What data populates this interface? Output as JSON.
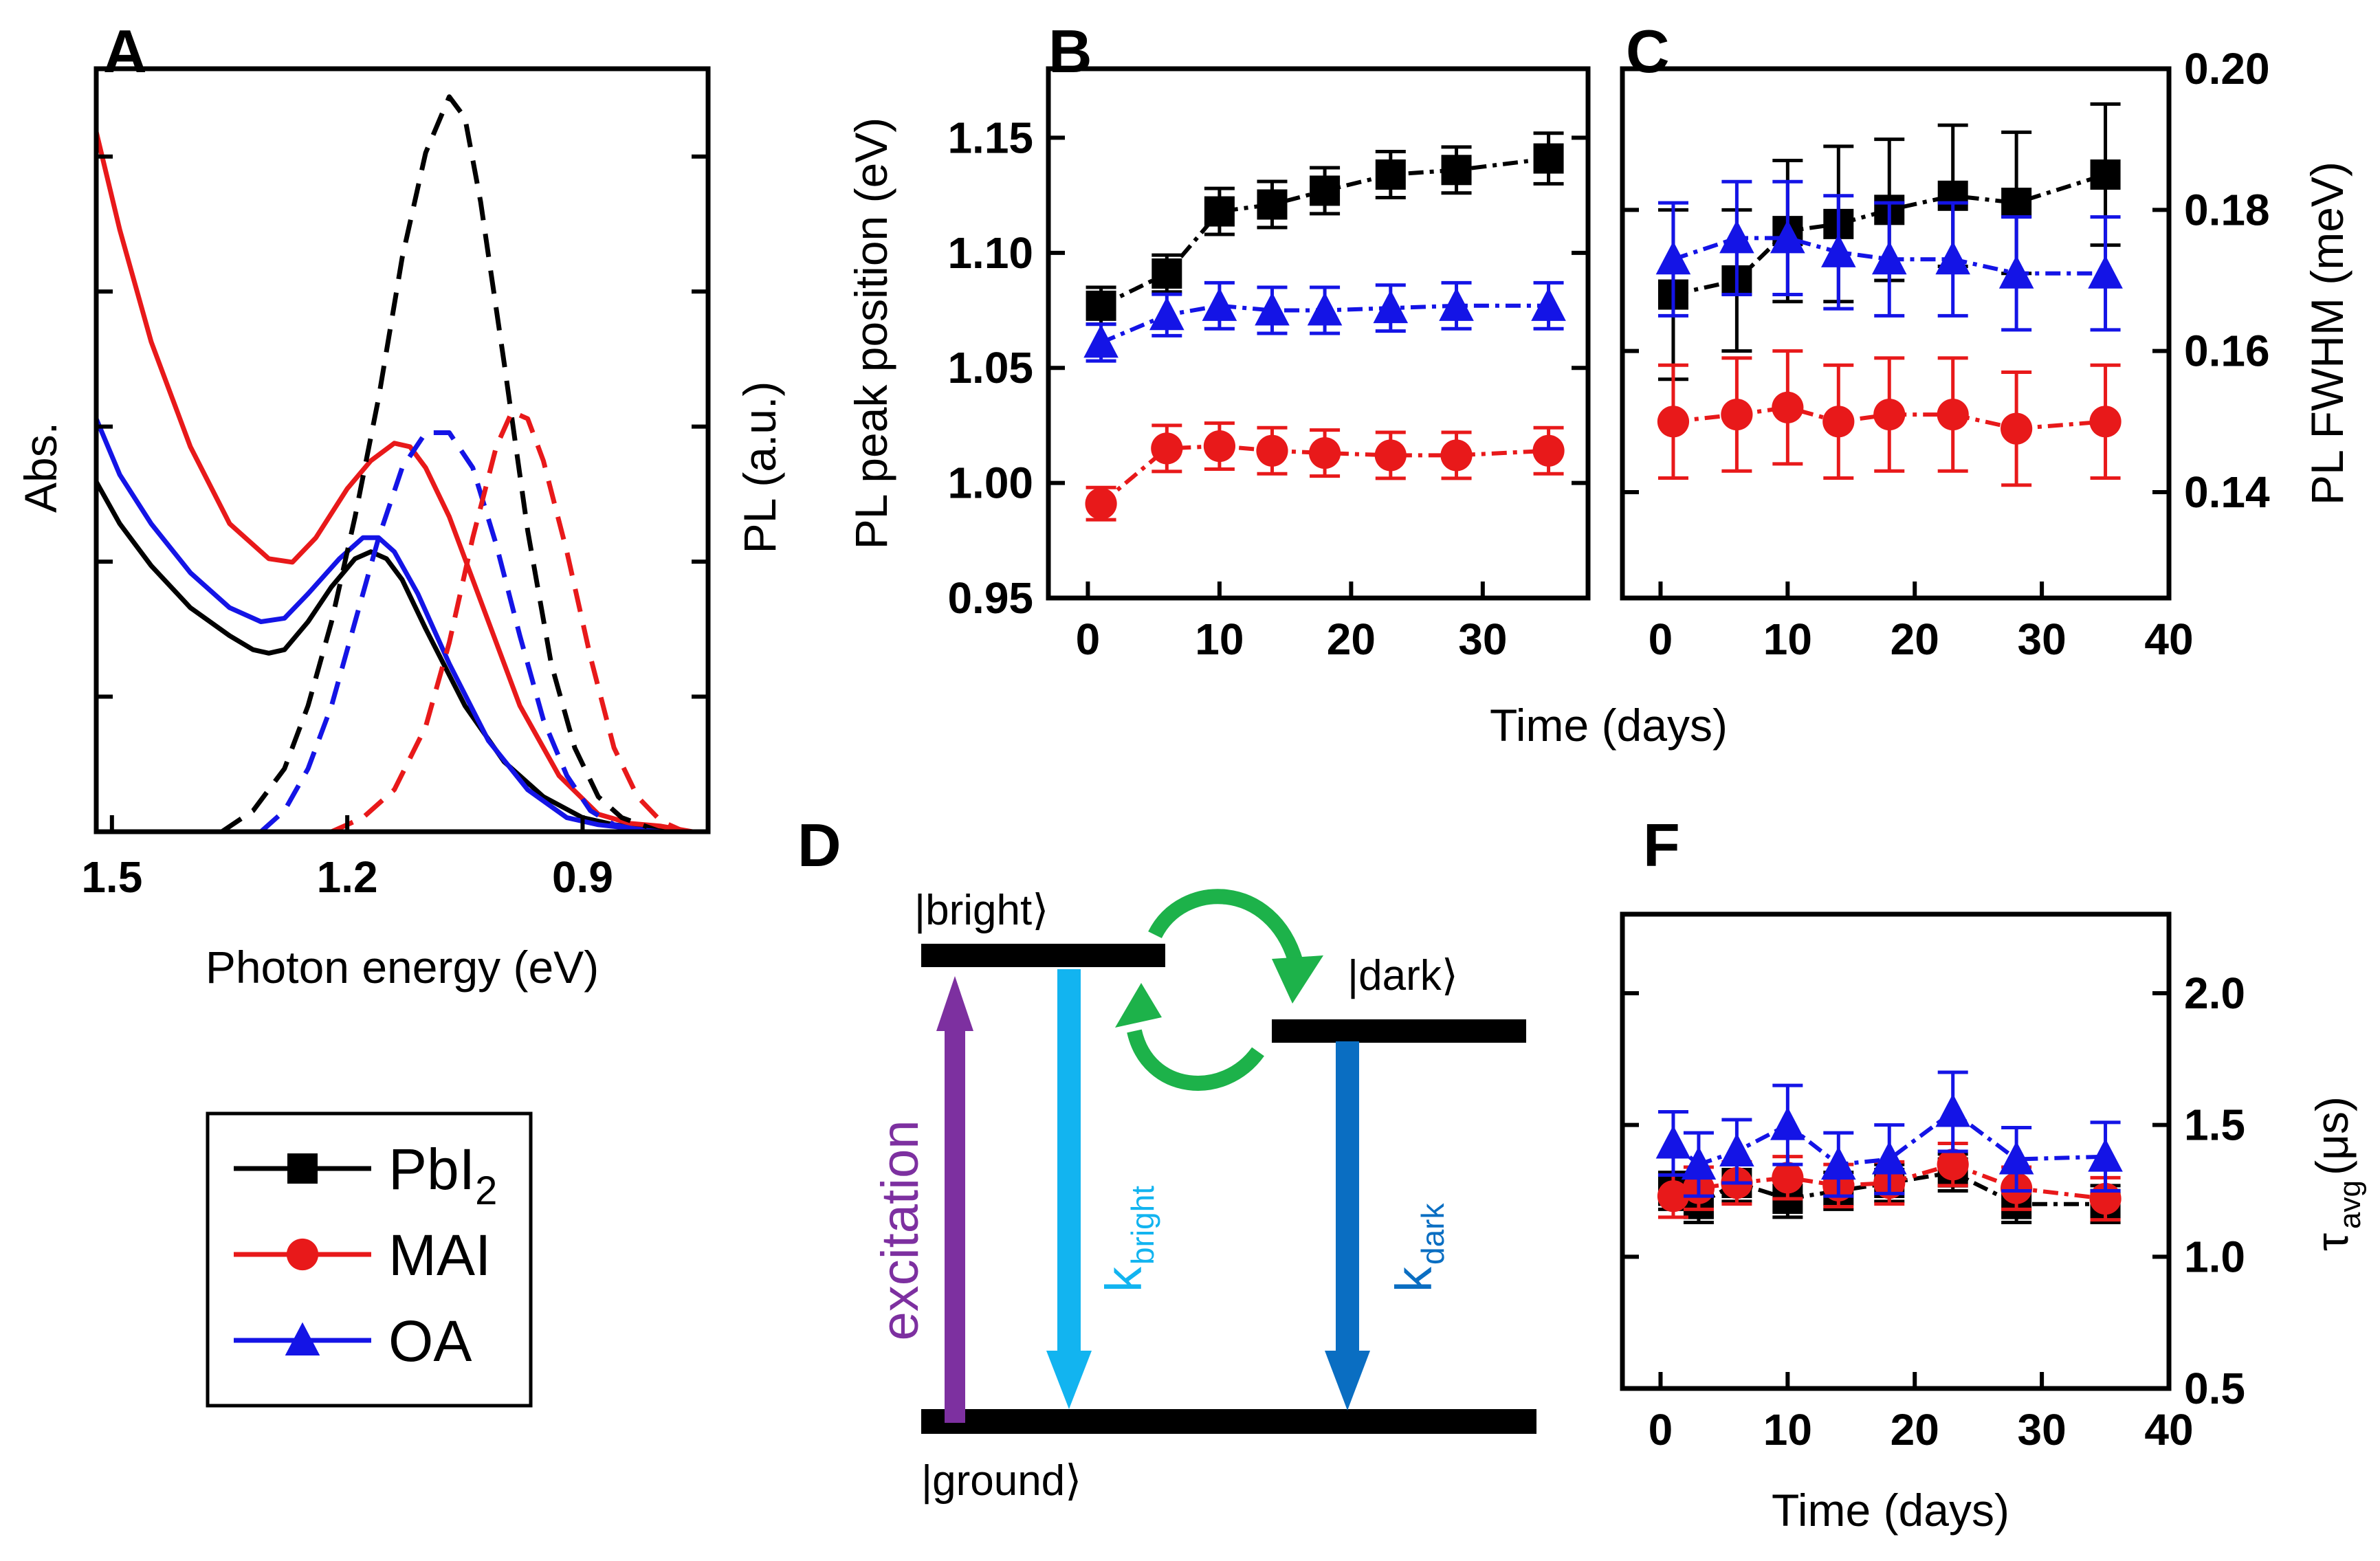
{
  "figure": {
    "panel_labels": {
      "A": "A",
      "B": "B",
      "C": "C",
      "D": "D",
      "F": "F"
    },
    "colors": {
      "PbI2": "#000000",
      "MAI": "#e8191a",
      "OA": "#1414e6",
      "excitation": "#7d30a0",
      "bright": "#12b4f0",
      "dark": "#0a6ec2",
      "transfer": "#1db24a"
    }
  },
  "legend": {
    "entries": [
      {
        "key": "PbI2",
        "label": "PbI",
        "sub": "2",
        "marker": "square",
        "color": "#000000"
      },
      {
        "key": "MAI",
        "label": "MAI",
        "sub": "",
        "marker": "circle",
        "color": "#e8191a"
      },
      {
        "key": "OA",
        "label": "OA",
        "sub": "",
        "marker": "triangle",
        "color": "#1414e6"
      }
    ]
  },
  "chart_data": [
    {
      "id": "A",
      "type": "line",
      "xlabel": "Photon energy (eV)",
      "ylabel": "Abs.",
      "ylabel_right": "PL (a.u.)",
      "xlim": [
        1.52,
        0.74
      ],
      "x_reversed": true,
      "xticks": [
        1.5,
        1.2,
        0.9
      ],
      "xtick_labels": [
        "1.5",
        "1.2",
        "0.9"
      ],
      "ylim": [
        0,
        1.09
      ],
      "y_ticks_unlabeled": 5,
      "series": [
        {
          "name": "PbI2 Abs",
          "color": "#000000",
          "dash": false,
          "x": [
            1.52,
            1.49,
            1.45,
            1.4,
            1.35,
            1.32,
            1.3,
            1.28,
            1.25,
            1.22,
            1.19,
            1.17,
            1.15,
            1.13,
            1.1,
            1.05,
            1.0,
            0.95,
            0.9,
            0.86,
            0.82,
            0.78,
            0.75
          ],
          "y": [
            0.5,
            0.44,
            0.38,
            0.32,
            0.28,
            0.26,
            0.255,
            0.26,
            0.3,
            0.35,
            0.39,
            0.4,
            0.39,
            0.36,
            0.29,
            0.18,
            0.1,
            0.05,
            0.02,
            0.01,
            0.005,
            0.0,
            0.0
          ]
        },
        {
          "name": "MAI Abs",
          "color": "#e8191a",
          "dash": false,
          "x": [
            1.52,
            1.49,
            1.45,
            1.4,
            1.35,
            1.3,
            1.27,
            1.24,
            1.2,
            1.17,
            1.14,
            1.12,
            1.1,
            1.07,
            1.03,
            0.98,
            0.93,
            0.88,
            0.84,
            0.8,
            0.76
          ],
          "y": [
            1.0,
            0.86,
            0.7,
            0.55,
            0.44,
            0.39,
            0.385,
            0.42,
            0.49,
            0.53,
            0.555,
            0.55,
            0.52,
            0.45,
            0.33,
            0.18,
            0.08,
            0.025,
            0.012,
            0.008,
            0.0
          ]
        },
        {
          "name": "OA Abs",
          "color": "#1414e6",
          "dash": false,
          "x": [
            1.52,
            1.49,
            1.45,
            1.4,
            1.35,
            1.31,
            1.28,
            1.25,
            1.21,
            1.18,
            1.16,
            1.14,
            1.11,
            1.07,
            1.02,
            0.97,
            0.92,
            0.88,
            0.84,
            0.8,
            0.76
          ],
          "y": [
            0.59,
            0.51,
            0.44,
            0.37,
            0.32,
            0.3,
            0.305,
            0.34,
            0.39,
            0.42,
            0.42,
            0.4,
            0.34,
            0.24,
            0.13,
            0.06,
            0.02,
            0.01,
            0.005,
            0.0,
            0.0
          ]
        },
        {
          "name": "PbI2 PL",
          "color": "#000000",
          "dash": true,
          "x": [
            1.36,
            1.32,
            1.28,
            1.25,
            1.22,
            1.19,
            1.16,
            1.13,
            1.1,
            1.07,
            1.05,
            1.03,
            1.0,
            0.97,
            0.94,
            0.91,
            0.88,
            0.85,
            0.82,
            0.8
          ],
          "y": [
            0.0,
            0.03,
            0.09,
            0.18,
            0.3,
            0.45,
            0.62,
            0.82,
            0.97,
            1.05,
            1.02,
            0.9,
            0.67,
            0.43,
            0.24,
            0.12,
            0.05,
            0.02,
            0.008,
            0.0
          ]
        },
        {
          "name": "OA PL",
          "color": "#1414e6",
          "dash": true,
          "x": [
            1.31,
            1.28,
            1.25,
            1.22,
            1.19,
            1.16,
            1.13,
            1.1,
            1.07,
            1.04,
            1.01,
            0.98,
            0.95,
            0.92,
            0.89,
            0.86,
            0.83,
            0.8
          ],
          "y": [
            0.0,
            0.03,
            0.09,
            0.18,
            0.3,
            0.42,
            0.52,
            0.57,
            0.57,
            0.52,
            0.41,
            0.28,
            0.16,
            0.08,
            0.03,
            0.01,
            0.003,
            0.0
          ]
        },
        {
          "name": "MAI PL",
          "color": "#e8191a",
          "dash": true,
          "x": [
            1.22,
            1.18,
            1.14,
            1.1,
            1.07,
            1.04,
            1.01,
            0.99,
            0.97,
            0.95,
            0.92,
            0.89,
            0.86,
            0.83,
            0.8,
            0.77
          ],
          "y": [
            0.0,
            0.02,
            0.06,
            0.15,
            0.27,
            0.42,
            0.55,
            0.6,
            0.59,
            0.53,
            0.4,
            0.25,
            0.12,
            0.05,
            0.015,
            0.0
          ]
        }
      ]
    },
    {
      "id": "B",
      "type": "line",
      "xlabel": "Time (days)",
      "ylabel": "PL peak position (eV)",
      "xlim": [
        -3,
        38
      ],
      "ylim": [
        0.95,
        1.18
      ],
      "xticks": [
        0,
        10,
        20,
        30
      ],
      "yticks": [
        0.95,
        1.0,
        1.05,
        1.1,
        1.15
      ],
      "ytick_labels": [
        "0.95",
        "1.00",
        "1.05",
        "1.10",
        "1.15"
      ],
      "x": [
        1,
        6,
        10,
        14,
        18,
        23,
        28,
        35
      ],
      "series": [
        {
          "name": "PbI2",
          "color": "#000000",
          "marker": "square",
          "values": [
            1.077,
            1.091,
            1.118,
            1.121,
            1.127,
            1.134,
            1.136,
            1.141
          ],
          "err": [
            0.008,
            0.008,
            0.01,
            0.01,
            0.01,
            0.01,
            0.01,
            0.011
          ]
        },
        {
          "name": "MAI",
          "color": "#e8191a",
          "marker": "circle",
          "values": [
            0.991,
            1.015,
            1.016,
            1.014,
            1.013,
            1.012,
            1.012,
            1.014
          ],
          "err": [
            0.007,
            0.01,
            0.01,
            0.01,
            0.01,
            0.01,
            0.01,
            0.01
          ]
        },
        {
          "name": "OA",
          "color": "#1414e6",
          "marker": "triangle",
          "values": [
            1.061,
            1.073,
            1.077,
            1.075,
            1.075,
            1.076,
            1.077,
            1.077
          ],
          "err": [
            0.008,
            0.009,
            0.01,
            0.01,
            0.01,
            0.01,
            0.01,
            0.01
          ]
        }
      ]
    },
    {
      "id": "C",
      "type": "line",
      "xlabel": "Time (days)",
      "ylabel": "PL FWHM (meV)",
      "xlim": [
        -3,
        40
      ],
      "ylim": [
        0.125,
        0.2
      ],
      "xticks": [
        0,
        10,
        20,
        30,
        40
      ],
      "yticks": [
        0.14,
        0.16,
        0.18,
        0.2
      ],
      "ytick_labels": [
        "0.14",
        "0.16",
        "0.18",
        "0.20"
      ],
      "x": [
        1,
        6,
        10,
        14,
        18,
        23,
        28,
        35
      ],
      "series": [
        {
          "name": "PbI2",
          "color": "#000000",
          "marker": "square",
          "values": [
            0.168,
            0.17,
            0.177,
            0.178,
            0.18,
            0.182,
            0.181,
            0.185
          ],
          "err": [
            0.012,
            0.01,
            0.01,
            0.011,
            0.01,
            0.01,
            0.01,
            0.01
          ]
        },
        {
          "name": "MAI",
          "color": "#e8191a",
          "marker": "circle",
          "values": [
            0.15,
            0.151,
            0.152,
            0.15,
            0.151,
            0.151,
            0.149,
            0.15
          ],
          "err": [
            0.008,
            0.008,
            0.008,
            0.008,
            0.008,
            0.008,
            0.008,
            0.008
          ]
        },
        {
          "name": "OA",
          "color": "#1414e6",
          "marker": "triangle",
          "values": [
            0.173,
            0.176,
            0.176,
            0.174,
            0.173,
            0.173,
            0.171,
            0.171
          ],
          "err": [
            0.008,
            0.008,
            0.008,
            0.008,
            0.008,
            0.008,
            0.008,
            0.008
          ]
        }
      ]
    },
    {
      "id": "D",
      "type": "diagram",
      "levels": {
        "bright": "|bright⟩",
        "dark": "|dark⟩",
        "ground": "|ground⟩"
      },
      "excitation": "excitation",
      "k_bright": {
        "main": "k",
        "sub": "bright"
      },
      "k_dark": {
        "main": "k",
        "sub": "dark"
      }
    },
    {
      "id": "F",
      "type": "line",
      "xlabel": "Time (days)",
      "ylabel": "τ",
      "ylabel_sub": "avg",
      "ylabel_unit": " (μs)",
      "xlim": [
        -3,
        40
      ],
      "ylim": [
        0.5,
        2.3
      ],
      "xticks": [
        0,
        10,
        20,
        30,
        40
      ],
      "yticks": [
        0.5,
        1.0,
        1.5,
        2.0
      ],
      "ytick_labels": [
        "0.5",
        "1.0",
        "1.5",
        "2.0"
      ],
      "x": [
        1,
        3,
        6,
        10,
        14,
        18,
        23,
        28,
        35
      ],
      "series": [
        {
          "name": "PbI2",
          "color": "#000000",
          "marker": "square",
          "values": [
            1.25,
            1.2,
            1.28,
            1.22,
            1.25,
            1.28,
            1.32,
            1.2,
            1.2
          ],
          "err": [
            0.07,
            0.07,
            0.07,
            0.07,
            0.07,
            0.07,
            0.07,
            0.07,
            0.07
          ]
        },
        {
          "name": "MAI",
          "color": "#e8191a",
          "marker": "circle",
          "values": [
            1.23,
            1.26,
            1.28,
            1.3,
            1.27,
            1.28,
            1.35,
            1.26,
            1.22
          ],
          "err": [
            0.08,
            0.08,
            0.08,
            0.08,
            0.08,
            0.08,
            0.08,
            0.08,
            0.08
          ]
        },
        {
          "name": "OA",
          "color": "#1414e6",
          "marker": "triangle",
          "values": [
            1.43,
            1.35,
            1.4,
            1.5,
            1.35,
            1.37,
            1.55,
            1.37,
            1.38
          ],
          "err": [
            0.12,
            0.12,
            0.12,
            0.15,
            0.12,
            0.13,
            0.15,
            0.12,
            0.13
          ]
        }
      ]
    }
  ]
}
